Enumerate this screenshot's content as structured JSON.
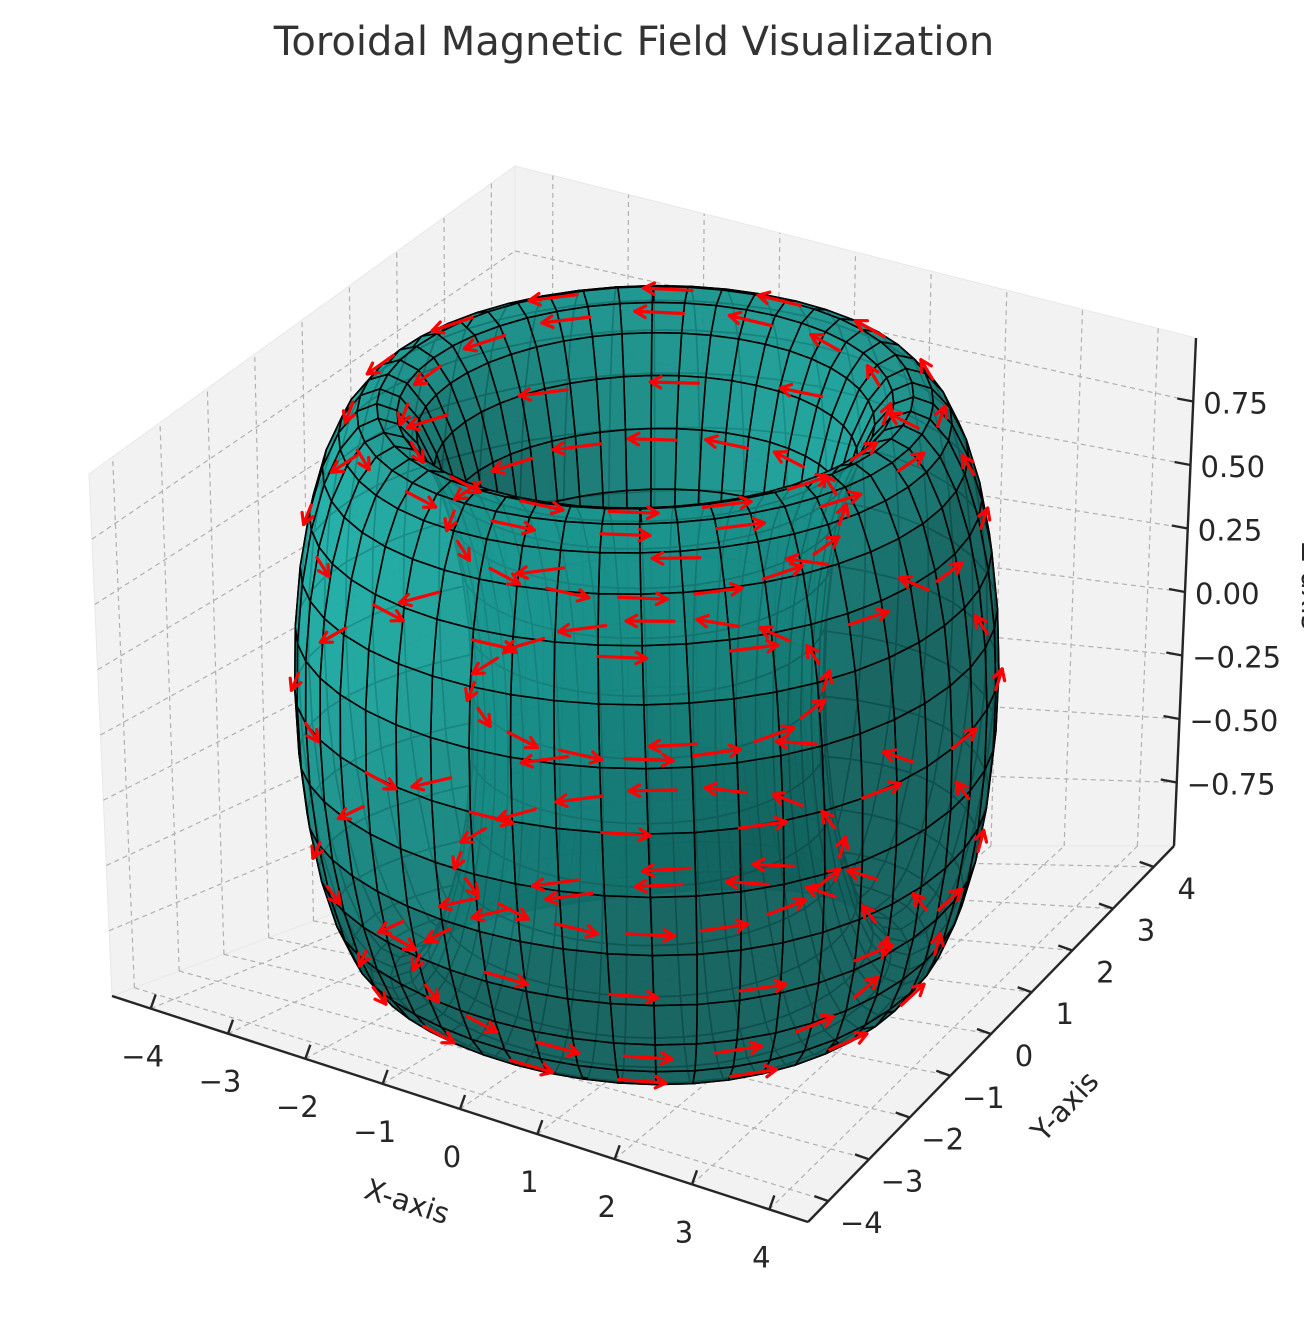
{
  "chart_data": {
    "type": "surface3d",
    "title": "Toroidal Magnetic Field Visualization",
    "xlabel": "X-axis",
    "ylabel": "Y-axis",
    "zlabel": "Z-axis",
    "xlim": [
      -4.5,
      4.5
    ],
    "ylim": [
      -4.5,
      4.5
    ],
    "zlim": [
      -1,
      1
    ],
    "x_ticks": [
      -4,
      -3,
      -2,
      -1,
      0,
      1,
      2,
      3,
      4
    ],
    "y_ticks": [
      -4,
      -3,
      -2,
      -1,
      0,
      1,
      2,
      3,
      4
    ],
    "z_ticks": [
      -0.75,
      -0.5,
      -0.25,
      0.0,
      0.25,
      0.5,
      0.75
    ],
    "x_tick_labels": [
      "−4",
      "−3",
      "−2",
      "−1",
      "0",
      "1",
      "2",
      "3",
      "4"
    ],
    "y_tick_labels": [
      "−4",
      "−3",
      "−2",
      "−1",
      "0",
      "1",
      "2",
      "3",
      "4"
    ],
    "z_tick_labels": [
      "−0.75",
      "−0.50",
      "−0.25",
      "0.00",
      "0.25",
      "0.50",
      "0.75"
    ],
    "torus": {
      "major_radius": 3,
      "minor_radius": 1
    },
    "surface_color": "#20b2aa",
    "edge_color": "#000000",
    "vector_color": "#ff0000",
    "grid": true,
    "pane_color": "#f2f2f2"
  }
}
